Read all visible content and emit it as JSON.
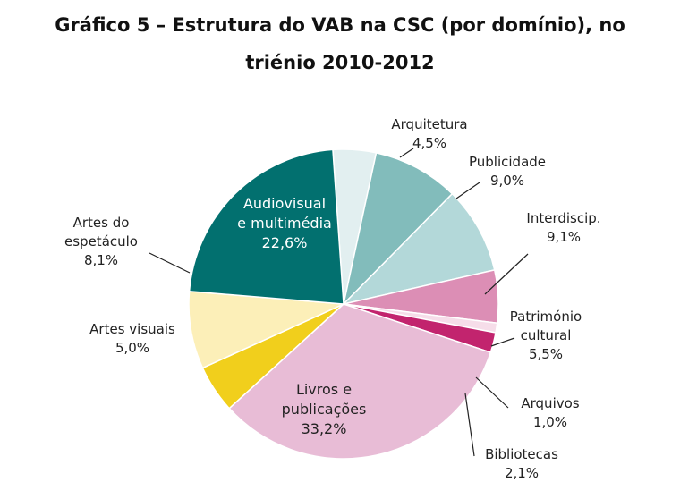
{
  "title": {
    "line1": "Gráfico 5 – Estrutura do VAB na CSC (por domínio), no",
    "line2": "triénio 2010-2012"
  },
  "chart_data": {
    "type": "pie",
    "title": "Gráfico 5 – Estrutura do VAB na CSC (por domínio), no triénio 2010-2012",
    "slices": [
      {
        "key": "arquitetura",
        "lines": [
          "Arquitetura"
        ],
        "value": 4.5,
        "value_label": "4,5%",
        "color": "#e2eff0"
      },
      {
        "key": "publicidade",
        "lines": [
          "Publicidade"
        ],
        "value": 9.0,
        "value_label": "9,0%",
        "color": "#82bcbb"
      },
      {
        "key": "interdisciplinar",
        "lines": [
          "Interdiscip."
        ],
        "value": 9.1,
        "value_label": "9,1%",
        "color": "#b3d8d9"
      },
      {
        "key": "patrimonio-cultural",
        "lines": [
          "Património",
          "cultural"
        ],
        "value": 5.5,
        "value_label": "5,5%",
        "color": "#dc8eb5"
      },
      {
        "key": "arquivos",
        "lines": [
          "Arquivos"
        ],
        "value": 1.0,
        "value_label": "1,0%",
        "color": "#f6dde9"
      },
      {
        "key": "bibliotecas",
        "lines": [
          "Bibliotecas"
        ],
        "value": 2.1,
        "value_label": "2,1%",
        "color": "#c2246e"
      },
      {
        "key": "livros-publicacoes",
        "lines": [
          "Livros e",
          "publicações"
        ],
        "value": 33.2,
        "value_label": "33,2%",
        "color": "#e8bcd6"
      },
      {
        "key": "artes-visuais",
        "lines": [
          "Artes visuais"
        ],
        "value": 5.0,
        "value_label": "5,0%",
        "color": "#f1cf1c"
      },
      {
        "key": "artes-espetaculo",
        "lines": [
          "Artes do",
          "espetáculo"
        ],
        "value": 8.1,
        "value_label": "8,1%",
        "color": "#fcefb8"
      },
      {
        "key": "audiovisual-multimedia",
        "lines": [
          "Audiovisual",
          "e multimédia"
        ],
        "value": 22.6,
        "value_label": "22,6%",
        "color": "#02706f"
      }
    ]
  }
}
